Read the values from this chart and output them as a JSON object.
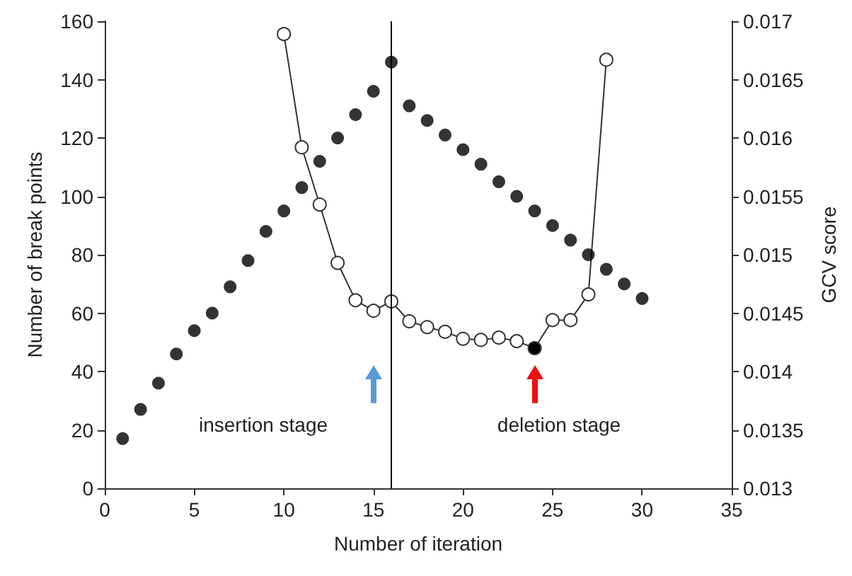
{
  "chart_data": {
    "type": "scatter",
    "xlabel": "Number of iteration",
    "ylabel": "Number of break points",
    "y2label": "GCV score",
    "x": [
      1,
      2,
      3,
      4,
      5,
      6,
      7,
      8,
      9,
      10,
      11,
      12,
      13,
      14,
      15,
      16,
      17,
      18,
      19,
      20,
      21,
      22,
      23,
      24,
      25,
      26,
      27,
      28,
      29,
      30
    ],
    "series": [
      {
        "color": "#000000",
        "values": [
          17,
          27,
          36,
          46,
          54,
          60,
          69,
          78,
          88,
          95,
          103,
          112,
          120,
          128,
          136,
          146,
          131,
          126,
          121,
          116,
          111,
          105,
          100,
          95,
          90,
          85,
          80,
          75,
          70,
          65
        ]
      },
      {
        "type": "line",
        "axis": "y2",
        "color": "#333333",
        "x": [
          10,
          11,
          12,
          13,
          14,
          15,
          16,
          17,
          18,
          19,
          20,
          21,
          22,
          23,
          24,
          25,
          26,
          27,
          28
        ],
        "values": [
          0.01689,
          0.01592,
          0.01543,
          0.01493,
          0.01461,
          0.01452,
          0.0146,
          0.01443,
          0.01438,
          0.01434,
          0.01428,
          0.01427,
          0.01429,
          0.01426,
          0.0142,
          0.01444,
          0.01444,
          0.01466,
          0.01667
        ],
        "colors": [
          "#ffffff",
          "#ffffff",
          "#ffffff",
          "#ffffff",
          "#ffffff",
          "#ffffff",
          "#ffffff",
          "#ffffff",
          "#ffffff",
          "#ffffff",
          "#ffffff",
          "#ffffff",
          "#ffffff",
          "#ffffff",
          "#000000",
          "#ffffff",
          "#ffffff",
          "#ffffff",
          "#ffffff"
        ]
      }
    ],
    "xlim": [
      0,
      35
    ],
    "xticks": [
      0,
      5,
      10,
      15,
      20,
      25,
      30,
      35
    ],
    "ylim": [
      0,
      160
    ],
    "yticks": [
      0,
      20,
      40,
      60,
      80,
      100,
      120,
      140,
      160
    ],
    "y2lim": [
      0.013,
      0.017
    ],
    "y2ticks": [
      0.013,
      0.0135,
      0.014,
      0.0145,
      0.015,
      0.0155,
      0.016,
      0.0165,
      0.017
    ],
    "ref_lines": [
      {
        "axis": "x",
        "value": 16,
        "color": "#000000"
      }
    ],
    "annotations": [
      "insertion stage",
      "deletion stage"
    ],
    "marker": "circle",
    "line_style": "solid"
  }
}
